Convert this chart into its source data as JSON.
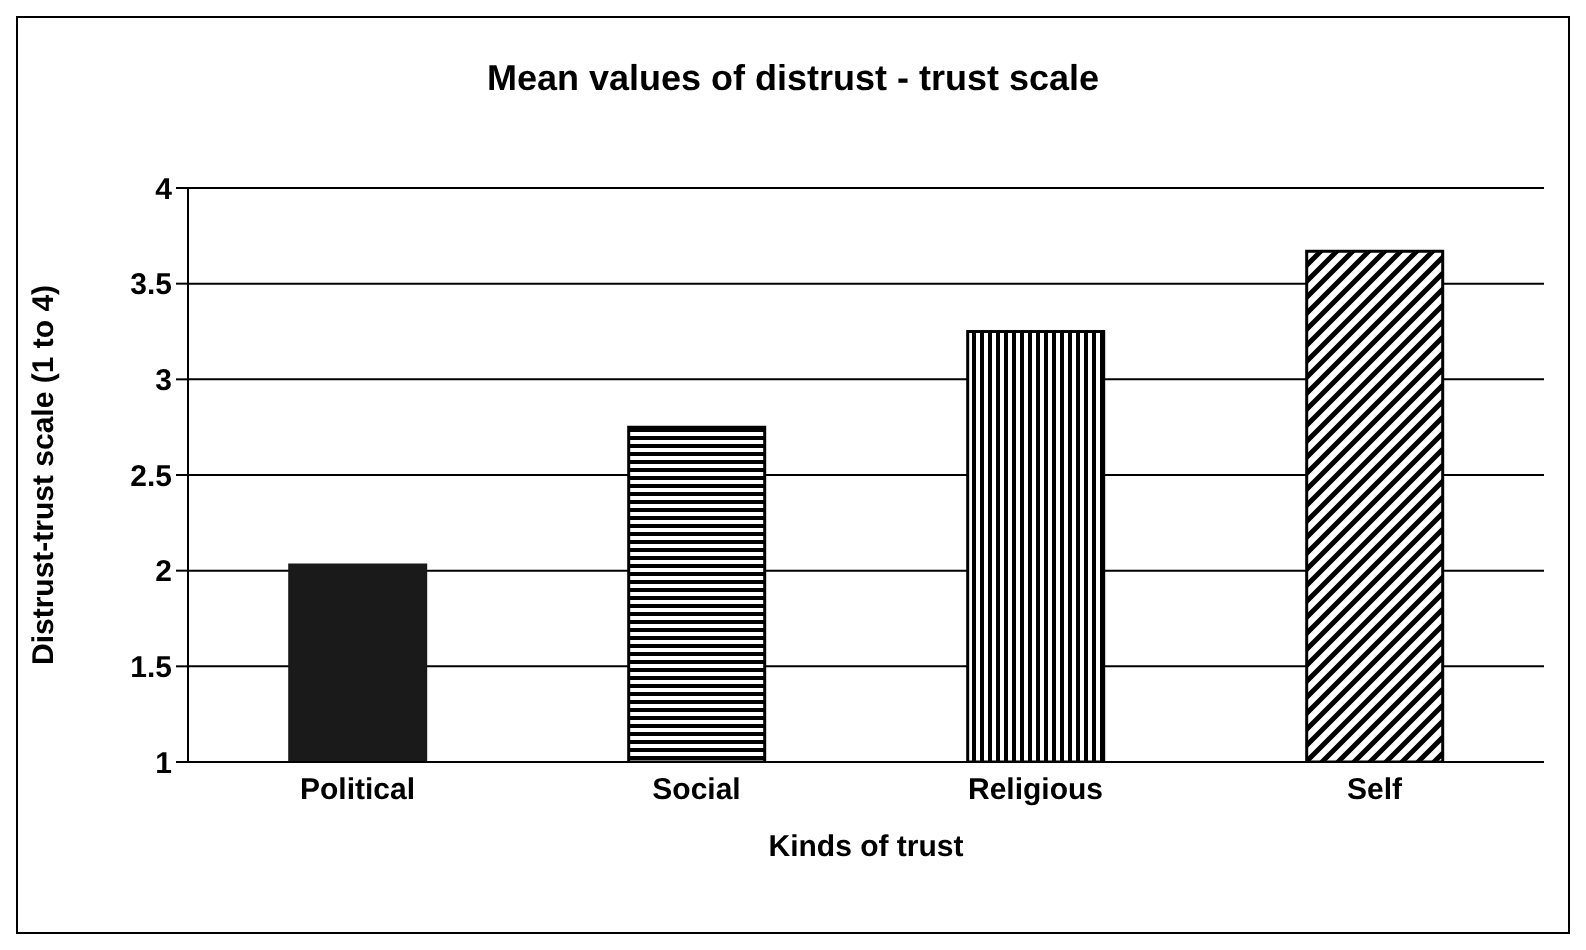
{
  "chart_data": {
    "type": "bar",
    "title": "Mean values of distrust - trust scale",
    "xlabel": "Kinds of trust",
    "ylabel": "Distrust-trust scale (1 to 4)",
    "categories": [
      "Political",
      "Social",
      "Religious",
      "Self"
    ],
    "values": [
      2.03,
      2.75,
      3.25,
      3.67
    ],
    "colors": [
      "#1a1a1a",
      "#000000",
      "#000000",
      "#000000"
    ],
    "ylim": [
      1,
      4
    ],
    "yticks": [
      1,
      1.5,
      2,
      2.5,
      3,
      3.5,
      4
    ],
    "grid": "y",
    "legend": false
  }
}
